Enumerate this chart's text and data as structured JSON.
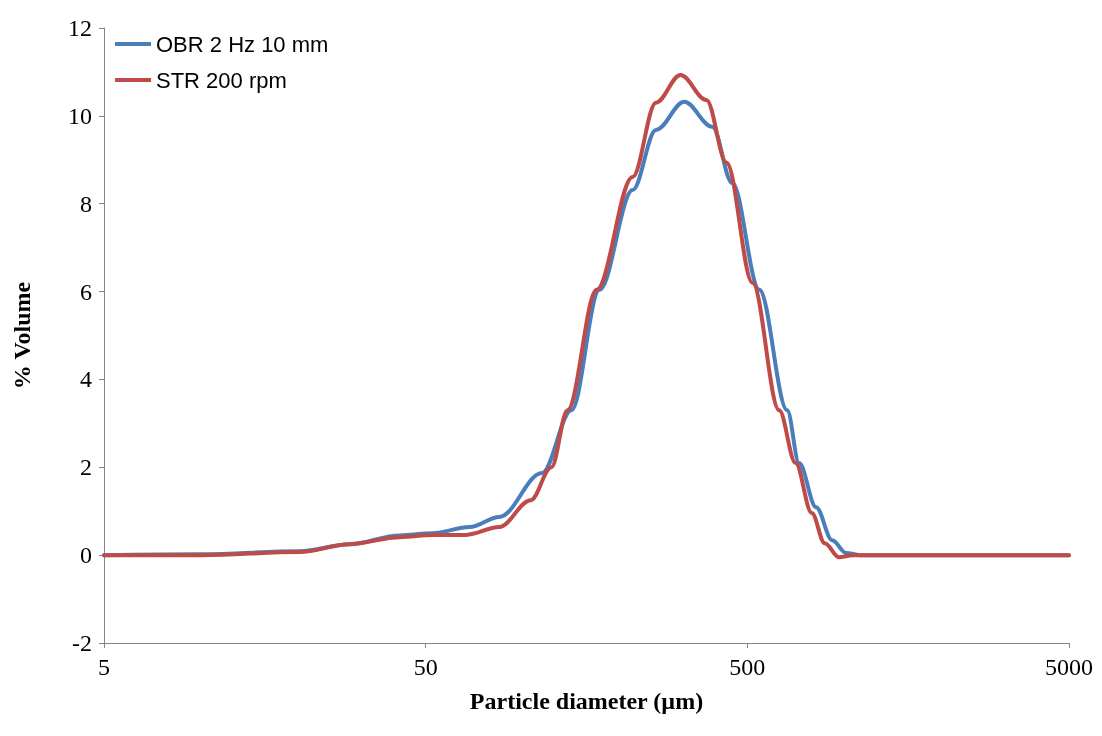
{
  "chart_data": {
    "type": "line",
    "xlabel": "Particle diameter (µm)",
    "ylabel": "% Volume",
    "log": "x",
    "xlim": [
      5,
      5000
    ],
    "xticks": [
      5,
      50,
      500,
      5000
    ],
    "ylim": [
      -2,
      12
    ],
    "yticks": [
      -2,
      0,
      2,
      4,
      6,
      8,
      10,
      12
    ],
    "grid": false,
    "legend": "top left",
    "marker": "none",
    "line_style": "solid",
    "series": [
      {
        "name": "OBR 2 Hz 10 mm",
        "color": "#4a7ebb",
        "x": [
          5,
          10,
          20.3,
          29,
          41.6,
          52.5,
          68.5,
          84.7,
          115,
          142,
          173.5,
          220,
          260,
          318.5,
          389,
          449,
          545,
          665,
          724,
          818,
          918,
          1014,
          1120,
          5000
        ],
        "values": [
          0,
          0.02,
          0.09,
          0.25,
          0.45,
          0.5,
          0.64,
          0.87,
          1.87,
          3.3,
          6.04,
          8.31,
          9.68,
          10.32,
          9.75,
          8.47,
          6.04,
          3.3,
          2.1,
          1.09,
          0.34,
          0.05,
          0,
          0
        ]
      },
      {
        "name": "STR 200 rpm",
        "color": "#be4b48",
        "x": [
          5,
          10,
          20.3,
          29,
          41.6,
          52.5,
          66.7,
          84.7,
          106,
          123,
          138,
          170,
          220,
          260,
          310,
          373,
          431,
          519,
          628,
          706,
          793,
          870,
          965,
          1060,
          5000
        ],
        "values": [
          0,
          0,
          0.07,
          0.25,
          0.41,
          0.46,
          0.46,
          0.64,
          1.25,
          2.0,
          3.3,
          6.04,
          8.61,
          10.3,
          10.93,
          10.36,
          8.93,
          6.2,
          3.3,
          2.1,
          0.96,
          0.27,
          -0.05,
          0,
          0
        ]
      }
    ]
  }
}
